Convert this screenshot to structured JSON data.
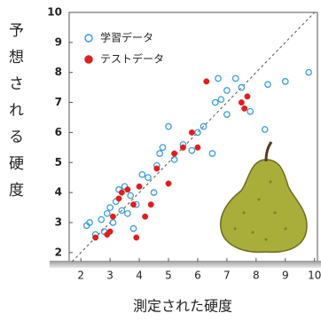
{
  "chart_data": {
    "type": "scatter",
    "x_label": "測定された硬度",
    "y_label": "予想される硬度",
    "xlim": [
      1.6,
      10.1
    ],
    "ylim": [
      1.7,
      10
    ],
    "xticks": [
      2,
      3,
      4,
      5,
      6,
      7,
      8,
      9,
      10
    ],
    "yticks": [
      2,
      3,
      4,
      5,
      6,
      7,
      8,
      9,
      10
    ],
    "series": [
      {
        "name": "学習データ",
        "color": "#3a9fd8",
        "marker": "hollow",
        "x": [
          2.2,
          2.3,
          2.5,
          2.7,
          2.8,
          2.9,
          3.0,
          3.1,
          3.2,
          3.3,
          3.4,
          3.5,
          3.6,
          3.7,
          3.8,
          3.9,
          4.1,
          4.3,
          4.5,
          4.6,
          4.7,
          4.8,
          5.0,
          5.2,
          5.5,
          5.8,
          6.0,
          6.2,
          6.5,
          6.6,
          6.8,
          7.0,
          7.0,
          7.3,
          7.5,
          7.8,
          8.3,
          8.4,
          9.0,
          9.8,
          6.7
        ],
        "values": [
          2.9,
          3.0,
          2.6,
          3.1,
          2.7,
          3.3,
          3.5,
          3.0,
          3.7,
          4.1,
          3.4,
          4.2,
          3.3,
          3.9,
          2.8,
          3.6,
          4.6,
          4.5,
          4.0,
          4.9,
          5.3,
          5.5,
          6.2,
          5.1,
          5.6,
          5.4,
          6.0,
          6.2,
          5.3,
          7.0,
          7.1,
          7.4,
          6.6,
          7.8,
          7.5,
          6.7,
          6.1,
          7.6,
          7.7,
          8.0,
          7.8
        ]
      },
      {
        "name": "テストデータ",
        "color": "#e01e1e",
        "marker": "filled",
        "x": [
          2.5,
          2.9,
          3.0,
          3.1,
          3.3,
          3.4,
          3.6,
          3.8,
          3.9,
          4.0,
          4.2,
          4.4,
          4.6,
          5.0,
          5.2,
          5.5,
          5.8,
          6.3,
          6.0,
          7.5,
          7.6,
          7.7
        ],
        "values": [
          2.5,
          2.6,
          2.7,
          3.2,
          3.8,
          4.0,
          4.1,
          3.6,
          2.5,
          4.2,
          3.2,
          3.6,
          4.8,
          4.3,
          5.3,
          5.5,
          6.0,
          7.7,
          5.5,
          7.0,
          6.8,
          7.2
        ]
      }
    ]
  }
}
